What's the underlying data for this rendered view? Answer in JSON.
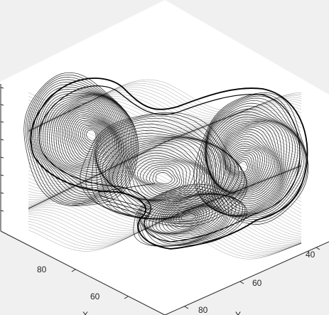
{
  "figure": {
    "background_color": "#f0f0f0",
    "axes_background_color": "#ffffff",
    "mesh_color": "#000000",
    "axis_color": "#262626"
  },
  "axes": {
    "x_axis": {
      "label": "X",
      "tick_labels": [
        "80",
        "60"
      ]
    },
    "y_axis": {
      "label": "Y",
      "tick_labels": [
        "40",
        "60",
        "80"
      ]
    }
  },
  "plot": {
    "type": "3d-wireframe-mesh"
  }
}
